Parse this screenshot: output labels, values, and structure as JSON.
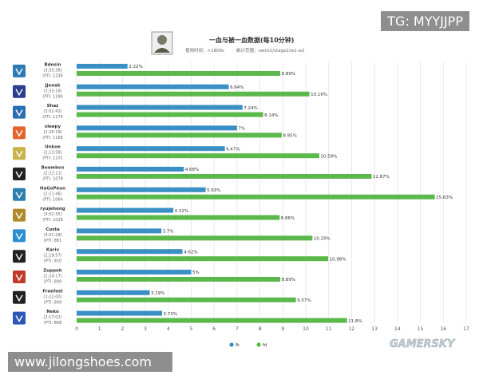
{
  "header": {
    "title": "一血与被一血数据(每10分钟)",
    "subtitle_left": "使用时间：>1800s",
    "subtitle_right": "统计范围：owl/s1/stage2/w1-w2"
  },
  "chart_data": {
    "type": "bar",
    "orientation": "horizontal",
    "categories": [
      "Bdosin",
      "Jjonak",
      "Shaz",
      "sleepy",
      "Unkoe",
      "Boombox",
      "HaGoPeun",
      "ryujehong",
      "Custa",
      "Kariv",
      "Zuppeh",
      "Freefeel",
      "Neko"
    ],
    "category_details": [
      {
        "time": "(3:35:38)",
        "pti": "(PTI: 1238"
      },
      {
        "time": "(3:33:16)",
        "pti": "(PTI: 1184"
      },
      {
        "time": "(3:02:42)",
        "pti": "(PTI: 1174"
      },
      {
        "time": "(2:26:18)",
        "pti": "(PTI: 1168"
      },
      {
        "time": "(2:13:58)",
        "pti": "(PTI: 1101"
      },
      {
        "time": "(2:22:11)",
        "pti": "(PTI: 1078"
      },
      {
        "time": "(2:11:46)",
        "pti": "(PTI: 1064"
      },
      {
        "time": "(3:02:35)",
        "pti": "(PTI: 1028"
      },
      {
        "time": "(3:01:28)",
        "pti": "(PTI: 881"
      },
      {
        "time": "(2:19:57)",
        "pti": "(PTI: 910"
      },
      {
        "time": "(2:24:17)",
        "pti": "(PTI: 899"
      },
      {
        "time": "(1:21:00)",
        "pti": "(PTI: 899"
      },
      {
        "time": "(2:17:02)",
        "pti": "(PTI: 868"
      }
    ],
    "series": [
      {
        "name": "fk",
        "color": "#3a90c4",
        "values": [
          2.22,
          6.64,
          7.24,
          7,
          6.47,
          4.68,
          5.63,
          4.22,
          3.7,
          4.62,
          5,
          3.19,
          3.73
        ],
        "labels": [
          "2.22%",
          "6.64%",
          "7.24%",
          "7%",
          "6.47%",
          "4.68%",
          "5.63%",
          "4.22%",
          "3.7%",
          "4.62%",
          "5%",
          "3.19%",
          "3.73%"
        ]
      },
      {
        "name": "fd",
        "color": "#5bb84a",
        "values": [
          8.89,
          10.16,
          8.14,
          8.95,
          10.59,
          12.87,
          15.63,
          8.86,
          10.29,
          10.98,
          8.89,
          9.57,
          11.8
        ],
        "labels": [
          "8.89%",
          "10.16%",
          "8.14%",
          "8.95%",
          "10.59%",
          "12.87%",
          "15.63%",
          "8.86%",
          "10.29%",
          "10.98%",
          "8.89%",
          "9.57%",
          "11.8%"
        ]
      }
    ],
    "xlim": [
      0,
      17
    ],
    "xticks": [
      0,
      1,
      2,
      3,
      4,
      5,
      6,
      7,
      8,
      9,
      10,
      11,
      12,
      13,
      14,
      15,
      16,
      17
    ],
    "grid": true,
    "legend_position": "bottom-center"
  },
  "team_logo_colors": [
    "#2e7bb4",
    "#2a3f8f",
    "#2a6fb3",
    "#e2642e",
    "#c9b24a",
    "#222222",
    "#2c7fb0",
    "#b08a2a",
    "#2a8fd0",
    "#222222",
    "#c0392b",
    "#222222",
    "#2b58b8"
  ],
  "watermark": "GAMERSKY",
  "overlays": {
    "top_right": "TG: MYYJJPP",
    "bottom_left": "www.jilongshoes.com"
  }
}
